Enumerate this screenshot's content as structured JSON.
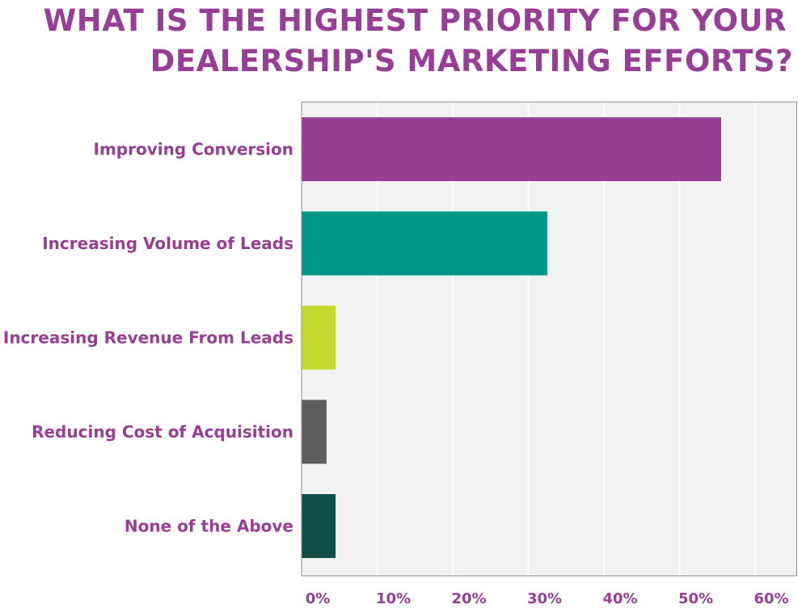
{
  "title": {
    "line1": "WHAT IS THE HIGHEST PRIORITY FOR YOUR",
    "line2": "DEALERSHIP'S MARKETING EFFORTS?"
  },
  "colors": {
    "text": "#973e95",
    "plot_background": "#f2f2f2",
    "gridline": "#ffffff",
    "axis": "#8c8c8c"
  },
  "chart_data": {
    "type": "bar",
    "orientation": "horizontal",
    "categories": [
      "Improving Conversion",
      "Increasing Volume of Leads",
      "Increasing Revenue From Leads",
      "Reducing Cost of Acquisition",
      "None of the Above"
    ],
    "values": [
      55.5,
      32.5,
      4.5,
      3.3,
      4.5
    ],
    "bar_colors": [
      "#973e95",
      "#009788",
      "#c4da2e",
      "#5e5e5e",
      "#104f48"
    ],
    "xlim": [
      0,
      65
    ],
    "xticks": [
      0,
      10,
      20,
      30,
      40,
      50,
      60
    ],
    "xtick_labels": [
      "0%",
      "10%",
      "20%",
      "30%",
      "40%",
      "50%",
      "60%"
    ],
    "grid": true,
    "legend": false
  }
}
